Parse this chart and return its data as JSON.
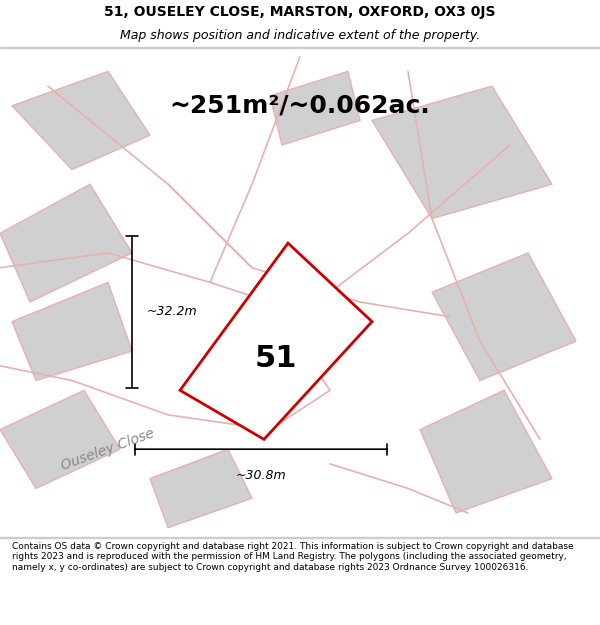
{
  "title_line1": "51, OUSELEY CLOSE, MARSTON, OXFORD, OX3 0JS",
  "title_line2": "Map shows position and indicative extent of the property.",
  "area_text": "~251m²/~0.062ac.",
  "dim_horizontal": "~30.8m",
  "dim_vertical": "~32.2m",
  "property_number": "51",
  "footer_text": "Contains OS data © Crown copyright and database right 2021. This information is subject to Crown copyright and database rights 2023 and is reproduced with the permission of HM Land Registry. The polygons (including the associated geometry, namely x, y co-ordinates) are subject to Crown copyright and database rights 2023 Ordnance Survey 100026316.",
  "bg_color": "#f5f0f0",
  "map_bg_color": "#ffffff",
  "property_fill": "#ffffff",
  "property_edge": "#cc0000",
  "neighbor_fill": "#d0d0d0",
  "neighbor_edge": "#e8b0b0",
  "road_color": "#e8b0b0",
  "dim_color": "#000000",
  "title_fontsize": 10,
  "subtitle_fontsize": 9,
  "area_fontsize": 18,
  "property_label_fontsize": 22,
  "dim_fontsize": 9,
  "footer_fontsize": 6.5,
  "road_label_fontsize": 10
}
